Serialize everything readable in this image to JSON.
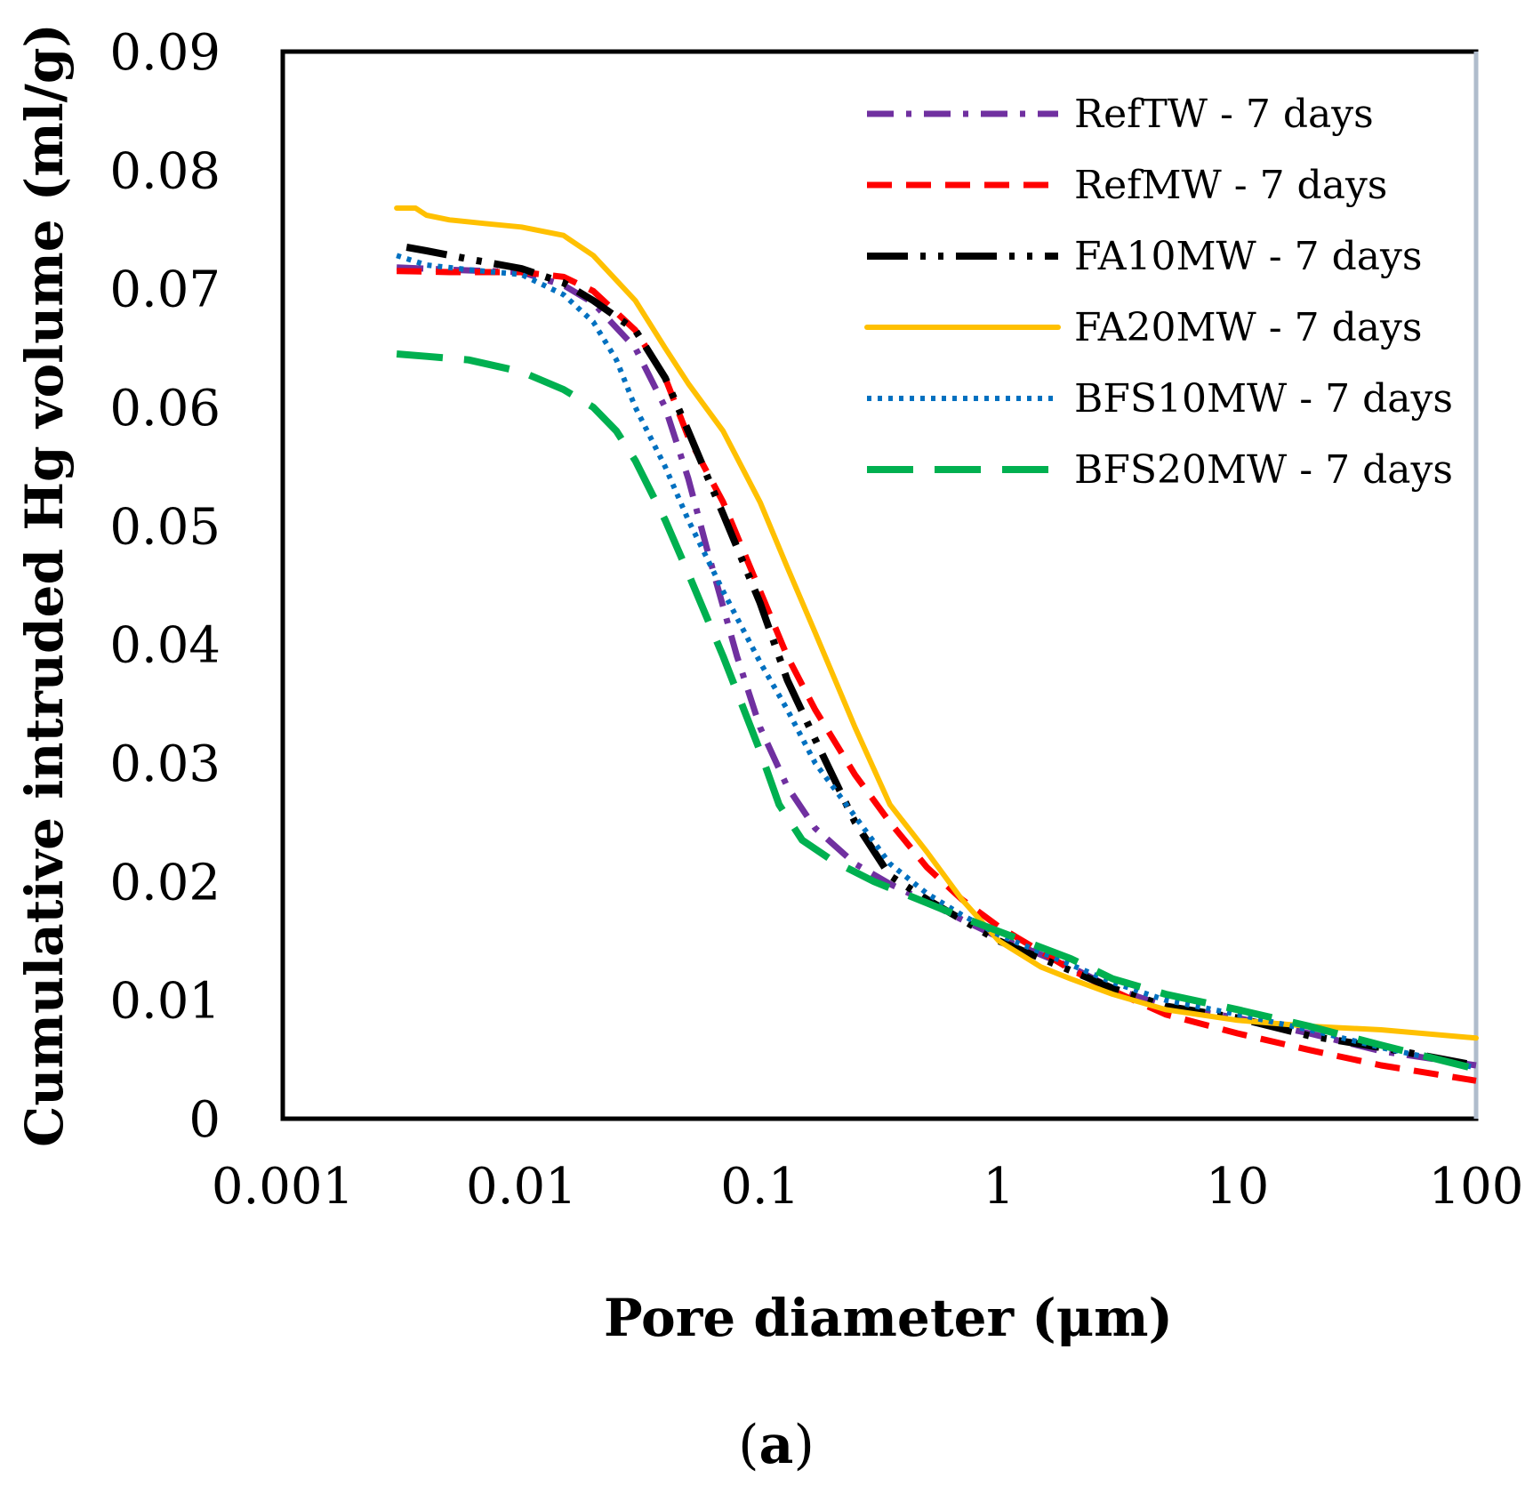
{
  "chart_data": {
    "type": "line",
    "title": "",
    "xlabel": "Pore diameter (μm)",
    "ylabel": "Cumulative intruded Hg volume (ml/g)",
    "caption_letter": "a",
    "xscale": "log",
    "xlim": [
      0.001,
      100
    ],
    "ylim": [
      0,
      0.09
    ],
    "grid": false,
    "legend_position": "top-right",
    "x_ticks": [
      {
        "value": 0.001,
        "label": "0.001"
      },
      {
        "value": 0.01,
        "label": "0.01"
      },
      {
        "value": 0.1,
        "label": "0.1"
      },
      {
        "value": 1,
        "label": "1"
      },
      {
        "value": 10,
        "label": "10"
      },
      {
        "value": 100,
        "label": "100"
      }
    ],
    "y_ticks": [
      {
        "value": 0,
        "label": "0"
      },
      {
        "value": 0.01,
        "label": "0.01"
      },
      {
        "value": 0.02,
        "label": "0.02"
      },
      {
        "value": 0.03,
        "label": "0.03"
      },
      {
        "value": 0.04,
        "label": "0.04"
      },
      {
        "value": 0.05,
        "label": "0.05"
      },
      {
        "value": 0.06,
        "label": "0.06"
      },
      {
        "value": 0.07,
        "label": "0.07"
      },
      {
        "value": 0.08,
        "label": "0.08"
      },
      {
        "value": 0.09,
        "label": "0.09"
      }
    ],
    "series": [
      {
        "name": "RefTW - 7 days",
        "color": "#7030A0",
        "dash": "dash-dot",
        "points": [
          [
            0.003,
            0.0718
          ],
          [
            0.005,
            0.0716
          ],
          [
            0.01,
            0.0714
          ],
          [
            0.015,
            0.0703
          ],
          [
            0.02,
            0.0688
          ],
          [
            0.03,
            0.065
          ],
          [
            0.04,
            0.06
          ],
          [
            0.05,
            0.054
          ],
          [
            0.06,
            0.048
          ],
          [
            0.08,
            0.039
          ],
          [
            0.1,
            0.033
          ],
          [
            0.13,
            0.028
          ],
          [
            0.17,
            0.0245
          ],
          [
            0.25,
            0.0215
          ],
          [
            0.35,
            0.0198
          ],
          [
            0.5,
            0.0183
          ],
          [
            0.7,
            0.0168
          ],
          [
            1,
            0.0153
          ],
          [
            2,
            0.0128
          ],
          [
            3,
            0.011
          ],
          [
            5,
            0.0095
          ],
          [
            10,
            0.0085
          ],
          [
            20,
            0.0072
          ],
          [
            40,
            0.0057
          ],
          [
            100,
            0.0045
          ]
        ]
      },
      {
        "name": "RefMW - 7 days",
        "color": "#FF0000",
        "dash": "dash",
        "points": [
          [
            0.003,
            0.0715
          ],
          [
            0.005,
            0.0714
          ],
          [
            0.01,
            0.0714
          ],
          [
            0.015,
            0.071
          ],
          [
            0.02,
            0.0698
          ],
          [
            0.03,
            0.0665
          ],
          [
            0.04,
            0.0625
          ],
          [
            0.05,
            0.0575
          ],
          [
            0.07,
            0.052
          ],
          [
            0.1,
            0.0445
          ],
          [
            0.13,
            0.039
          ],
          [
            0.17,
            0.0345
          ],
          [
            0.25,
            0.029
          ],
          [
            0.35,
            0.025
          ],
          [
            0.5,
            0.0212
          ],
          [
            0.7,
            0.0185
          ],
          [
            1,
            0.0162
          ],
          [
            2,
            0.0126
          ],
          [
            3,
            0.0108
          ],
          [
            5,
            0.0088
          ],
          [
            10,
            0.0072
          ],
          [
            20,
            0.0058
          ],
          [
            40,
            0.0045
          ],
          [
            100,
            0.0032
          ]
        ]
      },
      {
        "name": "FA10MW - 7 days",
        "color": "#000000",
        "dash": "long-dash-dot-dot",
        "points": [
          [
            0.0033,
            0.0735
          ],
          [
            0.004,
            0.0732
          ],
          [
            0.006,
            0.0725
          ],
          [
            0.01,
            0.0717
          ],
          [
            0.015,
            0.0705
          ],
          [
            0.02,
            0.069
          ],
          [
            0.03,
            0.0665
          ],
          [
            0.04,
            0.0625
          ],
          [
            0.05,
            0.058
          ],
          [
            0.07,
            0.051
          ],
          [
            0.1,
            0.0435
          ],
          [
            0.13,
            0.037
          ],
          [
            0.17,
            0.032
          ],
          [
            0.25,
            0.025
          ],
          [
            0.35,
            0.0205
          ],
          [
            0.5,
            0.0185
          ],
          [
            0.7,
            0.0168
          ],
          [
            1,
            0.015
          ],
          [
            2,
            0.0125
          ],
          [
            3,
            0.011
          ],
          [
            5,
            0.0095
          ],
          [
            10,
            0.0085
          ],
          [
            20,
            0.007
          ],
          [
            40,
            0.006
          ],
          [
            100,
            0.0045
          ]
        ]
      },
      {
        "name": "FA20MW - 7 days",
        "color": "#FFC000",
        "dash": "solid",
        "points": [
          [
            0.003,
            0.0768
          ],
          [
            0.0036,
            0.0768
          ],
          [
            0.004,
            0.0762
          ],
          [
            0.005,
            0.0758
          ],
          [
            0.007,
            0.0755
          ],
          [
            0.01,
            0.0752
          ],
          [
            0.015,
            0.0745
          ],
          [
            0.02,
            0.0728
          ],
          [
            0.03,
            0.069
          ],
          [
            0.04,
            0.065
          ],
          [
            0.05,
            0.062
          ],
          [
            0.07,
            0.058
          ],
          [
            0.1,
            0.052
          ],
          [
            0.13,
            0.0465
          ],
          [
            0.17,
            0.041
          ],
          [
            0.25,
            0.033
          ],
          [
            0.35,
            0.0265
          ],
          [
            0.5,
            0.0225
          ],
          [
            0.7,
            0.0185
          ],
          [
            1,
            0.015
          ],
          [
            1.5,
            0.0128
          ],
          [
            2,
            0.0118
          ],
          [
            3,
            0.0105
          ],
          [
            5,
            0.0092
          ],
          [
            10,
            0.0083
          ],
          [
            20,
            0.0078
          ],
          [
            40,
            0.0075
          ],
          [
            100,
            0.0068
          ]
        ]
      },
      {
        "name": "BFS10MW - 7 days",
        "color": "#0070C0",
        "dash": "dot",
        "points": [
          [
            0.003,
            0.0728
          ],
          [
            0.004,
            0.072
          ],
          [
            0.006,
            0.0716
          ],
          [
            0.01,
            0.0712
          ],
          [
            0.015,
            0.0695
          ],
          [
            0.02,
            0.0672
          ],
          [
            0.025,
            0.064
          ],
          [
            0.03,
            0.06
          ],
          [
            0.04,
            0.055
          ],
          [
            0.05,
            0.0505
          ],
          [
            0.07,
            0.0445
          ],
          [
            0.1,
            0.0385
          ],
          [
            0.13,
            0.0345
          ],
          [
            0.17,
            0.03
          ],
          [
            0.25,
            0.0255
          ],
          [
            0.35,
            0.0215
          ],
          [
            0.5,
            0.019
          ],
          [
            0.7,
            0.0172
          ],
          [
            1,
            0.0155
          ],
          [
            2,
            0.013
          ],
          [
            3,
            0.0115
          ],
          [
            5,
            0.01
          ],
          [
            10,
            0.0088
          ],
          [
            20,
            0.0075
          ],
          [
            40,
            0.006
          ],
          [
            100,
            0.0043
          ]
        ]
      },
      {
        "name": "BFS20MW - 7 days",
        "color": "#00B050",
        "dash": "long-dash",
        "points": [
          [
            0.003,
            0.0645
          ],
          [
            0.004,
            0.0643
          ],
          [
            0.006,
            0.064
          ],
          [
            0.01,
            0.063
          ],
          [
            0.015,
            0.0615
          ],
          [
            0.02,
            0.06
          ],
          [
            0.025,
            0.058
          ],
          [
            0.03,
            0.0555
          ],
          [
            0.04,
            0.0505
          ],
          [
            0.05,
            0.046
          ],
          [
            0.07,
            0.039
          ],
          [
            0.1,
            0.031
          ],
          [
            0.12,
            0.0265
          ],
          [
            0.15,
            0.0235
          ],
          [
            0.2,
            0.0218
          ],
          [
            0.3,
            0.02
          ],
          [
            0.5,
            0.0182
          ],
          [
            0.7,
            0.017
          ],
          [
            1,
            0.0158
          ],
          [
            2,
            0.0135
          ],
          [
            3,
            0.0118
          ],
          [
            5,
            0.0105
          ],
          [
            10,
            0.0092
          ],
          [
            20,
            0.0078
          ],
          [
            40,
            0.0062
          ],
          [
            100,
            0.0042
          ]
        ]
      }
    ]
  }
}
